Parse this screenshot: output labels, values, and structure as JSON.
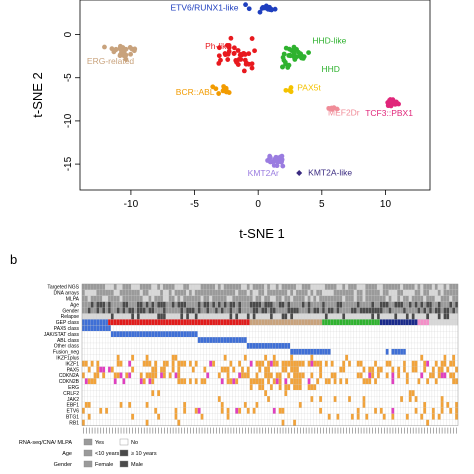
{
  "panel_b_label": "b",
  "chart_data": [
    {
      "type": "scatter",
      "xlabel": "t-SNE 1",
      "ylabel": "t-SNE 2",
      "xlim": [
        -14,
        13.5
      ],
      "ylim": [
        -18,
        4
      ],
      "xticks": [
        -10,
        -5,
        0,
        5,
        10
      ],
      "yticks": [
        -15,
        -10,
        -5,
        0
      ],
      "xtick_labels": [
        "-10",
        "-5",
        "0",
        "5",
        "10"
      ],
      "ytick_labels": [
        "-15",
        "-10",
        "-5",
        "0"
      ],
      "clusters": [
        {
          "name": "ETV6/RUNX1-like",
          "color": "#1f3fbf",
          "center": [
            0.5,
            3.0
          ],
          "spread": [
            2.2,
            0.7
          ],
          "n": 14
        },
        {
          "name": "ERG-related",
          "color": "#c8a27c",
          "center": [
            -10.5,
            -2.0
          ],
          "spread": [
            2.0,
            1.0
          ],
          "n": 26
        },
        {
          "name": "Ph-like",
          "color": "#e8191e",
          "center": [
            -1.5,
            -2.5
          ],
          "spread": [
            2.5,
            3.2
          ],
          "n": 38
        },
        {
          "name": "HHD-like",
          "color": "#2fb22f",
          "center": [
            3.0,
            -2.4
          ],
          "spread": [
            1.8,
            1.2
          ],
          "n": 28
        },
        {
          "name": "HHD",
          "color": "#2fb22f",
          "center": [
            2.3,
            -3.4
          ],
          "spread": [
            0.8,
            0.6
          ],
          "n": 6
        },
        {
          "name": "BCR::ABL",
          "color": "#f29b00",
          "center": [
            -2.8,
            -6.3
          ],
          "spread": [
            1.6,
            1.2
          ],
          "n": 12
        },
        {
          "name": "PAX5t",
          "color": "#f4c200",
          "center": [
            2.6,
            -6.5
          ],
          "spread": [
            0.6,
            0.6
          ],
          "n": 4
        },
        {
          "name": "MEF2Dr",
          "color": "#f08c98",
          "center": [
            5.8,
            -8.8
          ],
          "spread": [
            0.5,
            0.5
          ],
          "n": 6
        },
        {
          "name": "TCF3::PBX1",
          "color": "#e0267a",
          "center": [
            10.6,
            -7.8
          ],
          "spread": [
            0.9,
            0.6
          ],
          "n": 24
        },
        {
          "name": "KMT2Ar",
          "color": "#9a7ce0",
          "center": [
            1.5,
            -14.5
          ],
          "spread": [
            1.1,
            1.0
          ],
          "n": 30
        },
        {
          "name": "KMT2A-like",
          "color": "#3a2a80",
          "center": [
            3.3,
            -16.0
          ],
          "spread": [
            0.2,
            0.2
          ],
          "n": 1
        }
      ]
    },
    {
      "type": "heatmap",
      "row_labels": [
        "Targeted NGS",
        "DNA arrays",
        "MLPA",
        "Age",
        "Gender",
        "Relapse",
        "GEP class",
        "PAX5 class",
        "JAK/STAT class",
        "ABL class",
        "Other class",
        "Fusion_neg",
        "IKZF1plus",
        "IKZF1",
        "PAX5",
        "CDKN2A",
        "CDKN2B",
        "ERG",
        "CRLF2",
        "JAK2",
        "EBF1",
        "ETV6",
        "BTG1",
        "RB1"
      ],
      "n_columns": 130,
      "colors": {
        "grey": "#9a9a9a",
        "light": "#d8d8d8",
        "dark": "#4a4a4a",
        "orange": "#f2a33a",
        "magenta": "#e040c0",
        "blue": "#3f6fd6",
        "red": "#e01b1b",
        "tan": "#c8a27c",
        "green": "#2fb22f",
        "navy": "#1a2a8a",
        "pink": "#f48fc8",
        "empty": "#ffffff"
      },
      "legend": [
        {
          "label": "RNA-seq/CNA/ MLPA",
          "items": [
            {
              "label": "Yes",
              "color": "#9a9a9a"
            },
            {
              "label": "No",
              "color": "#ffffff"
            }
          ]
        },
        {
          "label": "Age",
          "items": [
            {
              "label": "<10 years",
              "color": "#9a9a9a"
            },
            {
              "label": "≥ 10 years",
              "color": "#4a4a4a"
            }
          ]
        },
        {
          "label": "Gender",
          "items": [
            {
              "label": "Female",
              "color": "#9a9a9a"
            },
            {
              "label": "Male",
              "color": "#4a4a4a"
            }
          ]
        }
      ]
    }
  ]
}
